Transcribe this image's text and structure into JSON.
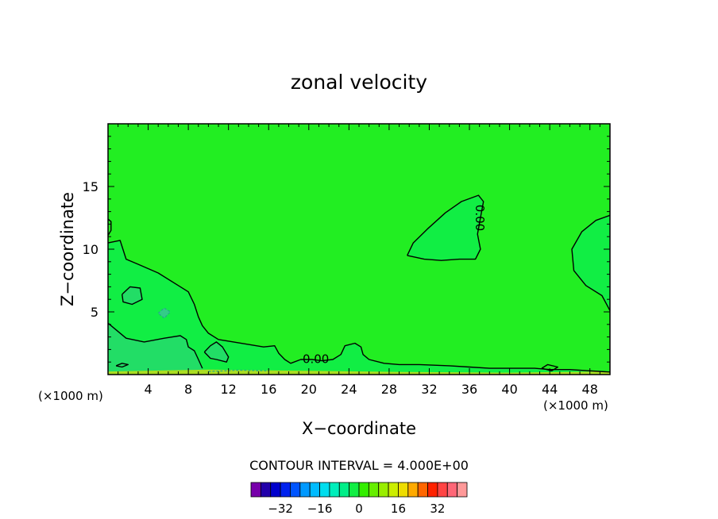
{
  "chart_data": {
    "type": "contour",
    "title": "zonal velocity",
    "xlabel": "X−coordinate",
    "ylabel": "Z−coordinate",
    "x_unit_left": "(×1000 m)",
    "x_unit_right": "(×1000 m)",
    "xlim": [
      0,
      50
    ],
    "ylim": [
      0,
      20
    ],
    "x_ticks": [
      4,
      8,
      12,
      16,
      20,
      24,
      28,
      32,
      36,
      40,
      44,
      48
    ],
    "y_ticks": [
      5,
      10,
      15
    ],
    "field_color": "#22ee22",
    "contour_labels": [
      {
        "text": "0.00",
        "x": 20.7,
        "y": 1.2,
        "rotate": 0
      },
      {
        "text": "0.00",
        "x": 37.0,
        "y": 12.5,
        "rotate": 90
      }
    ],
    "zero_contours": [
      [
        [
          0,
          10.5
        ],
        [
          1.2,
          10.7
        ],
        [
          1.8,
          9.2
        ],
        [
          3,
          8.8
        ],
        [
          5,
          8.1
        ],
        [
          7,
          7.1
        ],
        [
          8,
          6.6
        ],
        [
          8.6,
          5.6
        ],
        [
          9,
          4.6
        ],
        [
          9.4,
          3.9
        ],
        [
          10,
          3.3
        ],
        [
          11,
          2.8
        ],
        [
          12.5,
          2.6
        ],
        [
          14,
          2.4
        ],
        [
          15.5,
          2.2
        ],
        [
          16.6,
          2.3
        ],
        [
          17,
          1.7
        ],
        [
          17.6,
          1.2
        ],
        [
          18.2,
          0.9
        ],
        [
          19.2,
          1.2
        ],
        [
          20.3,
          1.2
        ],
        [
          21.3,
          1.1
        ],
        [
          22.4,
          1.2
        ],
        [
          23.2,
          1.6
        ],
        [
          23.6,
          2.3
        ],
        [
          24.6,
          2.5
        ],
        [
          25.2,
          2.2
        ],
        [
          25.4,
          1.6
        ],
        [
          26,
          1.2
        ],
        [
          27.5,
          0.9
        ],
        [
          29,
          0.8
        ],
        [
          31,
          0.8
        ],
        [
          34,
          0.7
        ],
        [
          36,
          0.6
        ],
        [
          38,
          0.5
        ],
        [
          40.5,
          0.5
        ],
        [
          42.5,
          0.5
        ],
        [
          44,
          0.4
        ],
        [
          46,
          0.4
        ],
        [
          48,
          0.3
        ],
        [
          50,
          0.2
        ]
      ],
      [
        [
          0,
          4.1
        ],
        [
          1.8,
          2.9
        ],
        [
          3.6,
          2.6
        ],
        [
          5.6,
          2.9
        ],
        [
          7.2,
          3.1
        ],
        [
          7.8,
          2.8
        ],
        [
          8,
          2.2
        ],
        [
          8.6,
          1.9
        ],
        [
          9,
          1.2
        ],
        [
          9.4,
          0.5
        ]
      ],
      [
        [
          0,
          12.4
        ],
        [
          0.3,
          12.2
        ],
        [
          0.3,
          11.5
        ],
        [
          0,
          11.1
        ]
      ],
      [
        [
          29.8,
          9.5
        ],
        [
          31.5,
          9.2
        ],
        [
          33.2,
          9.1
        ],
        [
          35,
          9.2
        ],
        [
          36.6,
          9.2
        ],
        [
          37.1,
          10.0
        ],
        [
          36.8,
          11.2
        ],
        [
          37.1,
          12.5
        ],
        [
          37.4,
          13.8
        ],
        [
          36.9,
          14.3
        ],
        [
          35.2,
          13.8
        ],
        [
          33.6,
          12.9
        ],
        [
          31.8,
          11.6
        ],
        [
          30.4,
          10.5
        ],
        [
          29.8,
          9.5
        ]
      ],
      [
        [
          50,
          12.7
        ],
        [
          48.6,
          12.3
        ],
        [
          47.2,
          11.4
        ],
        [
          46.2,
          10.0
        ],
        [
          46.4,
          8.3
        ],
        [
          47.6,
          7.1
        ],
        [
          49.2,
          6.3
        ],
        [
          50,
          5.1
        ]
      ],
      [
        [
          1.4,
          6.4
        ],
        [
          2.2,
          7.0
        ],
        [
          3.2,
          6.9
        ],
        [
          3.4,
          6.0
        ],
        [
          2.4,
          5.6
        ],
        [
          1.5,
          5.8
        ],
        [
          1.4,
          6.4
        ]
      ],
      [
        [
          9.6,
          1.8
        ],
        [
          10.2,
          2.3
        ],
        [
          10.8,
          2.6
        ],
        [
          11.4,
          2.2
        ],
        [
          12,
          1.4
        ],
        [
          11.8,
          1.0
        ],
        [
          10.8,
          1.2
        ],
        [
          10.2,
          1.3
        ],
        [
          9.6,
          1.8
        ]
      ],
      [
        [
          0.8,
          0.7
        ],
        [
          1.4,
          0.9
        ],
        [
          2.0,
          0.8
        ],
        [
          1.4,
          0.6
        ],
        [
          0.8,
          0.7
        ]
      ],
      [
        [
          43.2,
          0.5
        ],
        [
          43.8,
          0.8
        ],
        [
          44.8,
          0.6
        ],
        [
          44.2,
          0.3
        ],
        [
          43.2,
          0.5
        ]
      ]
    ],
    "dashed_contours": [
      [
        [
          5.0,
          4.9
        ],
        [
          5.6,
          5.3
        ],
        [
          6.2,
          5.0
        ],
        [
          5.6,
          4.5
        ],
        [
          5.0,
          4.9
        ]
      ],
      [
        [
          10,
          0.25
        ],
        [
          13,
          0.35
        ],
        [
          16,
          0.3
        ]
      ]
    ],
    "weak_regions": [
      {
        "fill": "#11ee44",
        "points": [
          [
            0,
            10.5
          ],
          [
            1.2,
            10.7
          ],
          [
            1.8,
            9.2
          ],
          [
            3,
            8.8
          ],
          [
            5,
            8.1
          ],
          [
            7,
            7.1
          ],
          [
            8,
            6.6
          ],
          [
            8.6,
            5.6
          ],
          [
            9,
            4.6
          ],
          [
            9.4,
            3.9
          ],
          [
            10,
            3.3
          ],
          [
            11,
            2.8
          ],
          [
            12.5,
            2.6
          ],
          [
            14,
            2.4
          ],
          [
            15.5,
            2.2
          ],
          [
            16.6,
            2.3
          ],
          [
            17,
            1.7
          ],
          [
            17.6,
            1.2
          ],
          [
            18.2,
            0.9
          ],
          [
            19.2,
            1.2
          ],
          [
            20.3,
            1.2
          ],
          [
            21.3,
            1.1
          ],
          [
            22.4,
            1.2
          ],
          [
            23.2,
            1.6
          ],
          [
            23.6,
            2.3
          ],
          [
            24.6,
            2.5
          ],
          [
            25.2,
            2.2
          ],
          [
            25.4,
            1.6
          ],
          [
            26,
            1.2
          ],
          [
            27.5,
            0.9
          ],
          [
            29,
            0.8
          ],
          [
            31,
            0.8
          ],
          [
            34,
            0.7
          ],
          [
            36,
            0.6
          ],
          [
            38,
            0.5
          ],
          [
            40.5,
            0.5
          ],
          [
            42.5,
            0.5
          ],
          [
            44,
            0.4
          ],
          [
            46,
            0.4
          ],
          [
            48,
            0.3
          ],
          [
            50,
            0.2
          ],
          [
            50,
            0
          ],
          [
            0,
            0
          ]
        ]
      },
      {
        "fill": "#11ee44",
        "points": [
          [
            29.8,
            9.5
          ],
          [
            31.5,
            9.2
          ],
          [
            33.2,
            9.1
          ],
          [
            35,
            9.2
          ],
          [
            36.6,
            9.2
          ],
          [
            37.1,
            10.0
          ],
          [
            36.8,
            11.2
          ],
          [
            37.1,
            12.5
          ],
          [
            37.4,
            13.8
          ],
          [
            36.9,
            14.3
          ],
          [
            35.2,
            13.8
          ],
          [
            33.6,
            12.9
          ],
          [
            31.8,
            11.6
          ],
          [
            30.4,
            10.5
          ],
          [
            29.8,
            9.5
          ]
        ]
      },
      {
        "fill": "#11ee44",
        "points": [
          [
            50,
            12.7
          ],
          [
            48.6,
            12.3
          ],
          [
            47.2,
            11.4
          ],
          [
            46.2,
            10.0
          ],
          [
            46.4,
            8.3
          ],
          [
            47.6,
            7.1
          ],
          [
            49.2,
            6.3
          ],
          [
            50,
            5.1
          ]
        ]
      },
      {
        "fill": "#22dd66",
        "points": [
          [
            0,
            4.1
          ],
          [
            1.8,
            2.9
          ],
          [
            3.6,
            2.6
          ],
          [
            5.6,
            2.9
          ],
          [
            7.2,
            3.1
          ],
          [
            7.8,
            2.8
          ],
          [
            8,
            2.2
          ],
          [
            8.6,
            1.9
          ],
          [
            9,
            1.2
          ],
          [
            9.4,
            0.5
          ],
          [
            9.4,
            0
          ],
          [
            0,
            0
          ]
        ]
      },
      {
        "fill": "#22dd66",
        "points": [
          [
            1.4,
            6.4
          ],
          [
            2.2,
            7.0
          ],
          [
            3.2,
            6.9
          ],
          [
            3.4,
            6.0
          ],
          [
            2.4,
            5.6
          ],
          [
            1.5,
            5.8
          ],
          [
            1.4,
            6.4
          ]
        ]
      },
      {
        "fill": "#22dd66",
        "points": [
          [
            9.6,
            1.8
          ],
          [
            10.2,
            2.3
          ],
          [
            10.8,
            2.6
          ],
          [
            11.4,
            2.2
          ],
          [
            12,
            1.4
          ],
          [
            11.8,
            1.0
          ],
          [
            10.8,
            1.2
          ],
          [
            10.2,
            1.3
          ],
          [
            9.6,
            1.8
          ]
        ]
      },
      {
        "fill": "#33cc88",
        "points": [
          [
            5.0,
            4.9
          ],
          [
            5.6,
            5.3
          ],
          [
            6.2,
            5.0
          ],
          [
            5.6,
            4.5
          ],
          [
            5.0,
            4.9
          ]
        ]
      },
      {
        "fill": "#aadd22",
        "points": [
          [
            0,
            0.25
          ],
          [
            10,
            0.4
          ],
          [
            20,
            0.3
          ],
          [
            30,
            0.2
          ],
          [
            40,
            0.15
          ],
          [
            50,
            0.25
          ],
          [
            50,
            0
          ],
          [
            0,
            0
          ]
        ]
      }
    ],
    "colorbar": {
      "title": "CONTOUR INTERVAL = 4.000E+00",
      "colors": [
        "#7700aa",
        "#2200aa",
        "#0000cc",
        "#0022ee",
        "#0055ff",
        "#0099ff",
        "#00bbff",
        "#00ddee",
        "#00eebb",
        "#00ee88",
        "#11ee44",
        "#33ee00",
        "#66ee00",
        "#99ee00",
        "#ccee00",
        "#eedd00",
        "#ffaa00",
        "#ff6600",
        "#ff2200",
        "#ff4444",
        "#ff6677",
        "#ff9999"
      ],
      "tick_labels": [
        "−32",
        "−16",
        "0",
        "16",
        "32"
      ],
      "tick_values": [
        -32,
        -16,
        0,
        16,
        32
      ],
      "range": [
        -44,
        44
      ]
    }
  }
}
